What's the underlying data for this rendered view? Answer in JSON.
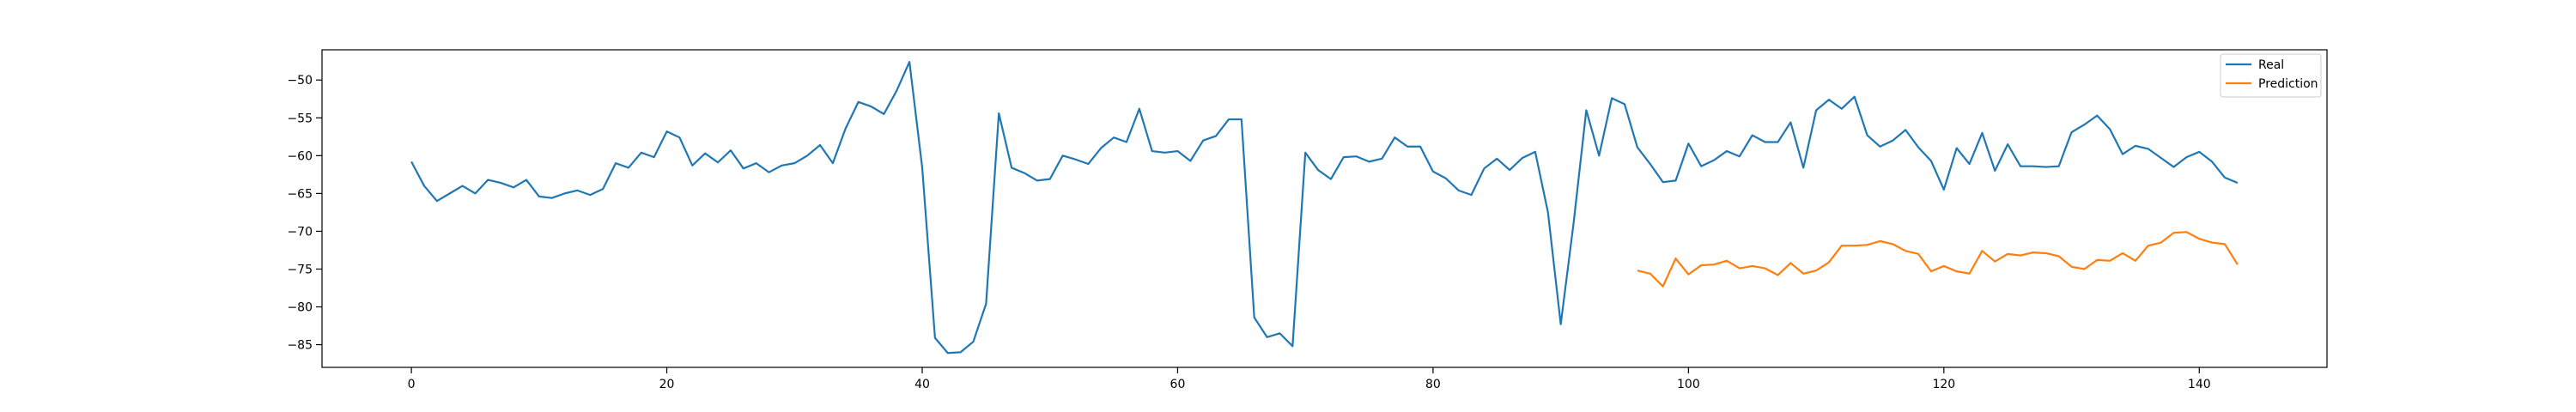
{
  "chart_data": {
    "type": "line",
    "title": "",
    "xlabel": "",
    "ylabel": "",
    "xlim": [
      -7,
      150
    ],
    "ylim": [
      -88,
      -46
    ],
    "grid": false,
    "legend_placement": "top-right",
    "x_ticks": [
      0,
      20,
      40,
      60,
      80,
      100,
      120,
      140
    ],
    "y_ticks": [
      -50,
      -55,
      -60,
      -65,
      -70,
      -75,
      -80,
      -85
    ],
    "series": [
      {
        "name": "Real",
        "color": "#1f77b4",
        "x_start": 0,
        "values": [
          -60.8,
          -64.0,
          -66.0,
          -65.0,
          -64.0,
          -65.0,
          -63.2,
          -63.6,
          -64.2,
          -63.2,
          -65.4,
          -65.6,
          -65.0,
          -64.6,
          -65.2,
          -64.4,
          -61.0,
          -61.6,
          -59.6,
          -60.2,
          -56.8,
          -57.6,
          -61.3,
          -59.7,
          -60.9,
          -59.3,
          -61.7,
          -61.0,
          -62.2,
          -61.3,
          -61.0,
          -60.0,
          -58.6,
          -61.0,
          -56.4,
          -52.9,
          -53.5,
          -54.5,
          -51.4,
          -47.6,
          -61.6,
          -84.1,
          -86.1,
          -86.0,
          -84.6,
          -79.6,
          -54.4,
          -61.6,
          -62.3,
          -63.3,
          -63.1,
          -60.0,
          -60.5,
          -61.1,
          -59.0,
          -57.6,
          -58.2,
          -53.8,
          -59.4,
          -59.6,
          -59.4,
          -60.7,
          -58.0,
          -57.4,
          -55.2,
          -55.2,
          -81.4,
          -84.0,
          -83.5,
          -85.2,
          -59.6,
          -61.9,
          -63.1,
          -60.2,
          -60.1,
          -60.8,
          -60.4,
          -57.6,
          -58.8,
          -58.8,
          -62.1,
          -63.0,
          -64.6,
          -65.2,
          -61.7,
          -60.4,
          -61.9,
          -60.3,
          -59.5,
          -67.5,
          -82.3,
          -69.0,
          -54.0,
          -60.0,
          -52.4,
          -53.2,
          -58.9,
          -61.1,
          -63.5,
          -63.3,
          -58.4,
          -61.4,
          -60.6,
          -59.4,
          -60.1,
          -57.3,
          -58.2,
          -58.2,
          -55.6,
          -61.6,
          -54.0,
          -52.6,
          -53.8,
          -52.2,
          -57.3,
          -58.8,
          -58.0,
          -56.6,
          -58.9,
          -60.7,
          -64.5,
          -59.0,
          -61.1,
          -57.0,
          -62.0,
          -58.5,
          -61.4,
          -61.4,
          -61.5,
          -61.4,
          -56.9,
          -55.9,
          -54.7,
          -56.5,
          -59.8,
          -58.7,
          -59.1,
          -60.3,
          -61.5,
          -60.2,
          -59.5,
          -60.8,
          -62.9,
          -63.6
        ]
      },
      {
        "name": "Prediction",
        "color": "#ff7f0e",
        "x_start": 96,
        "values": [
          -75.2,
          -75.6,
          -77.3,
          -73.6,
          -75.7,
          -74.5,
          -74.4,
          -73.9,
          -74.9,
          -74.6,
          -74.9,
          -75.8,
          -74.2,
          -75.6,
          -75.2,
          -74.1,
          -71.9,
          -71.9,
          -71.8,
          -71.3,
          -71.7,
          -72.6,
          -73.0,
          -75.3,
          -74.6,
          -75.3,
          -75.6,
          -72.6,
          -74.0,
          -73.0,
          -73.2,
          -72.8,
          -72.9,
          -73.3,
          -74.7,
          -75.0,
          -73.8,
          -73.9,
          -72.9,
          -73.9,
          -71.9,
          -71.5,
          -70.2,
          -70.1,
          -71.0,
          -71.5,
          -71.7,
          -74.4
        ]
      }
    ],
    "legend": {
      "entries": [
        "Real",
        "Prediction"
      ]
    }
  }
}
